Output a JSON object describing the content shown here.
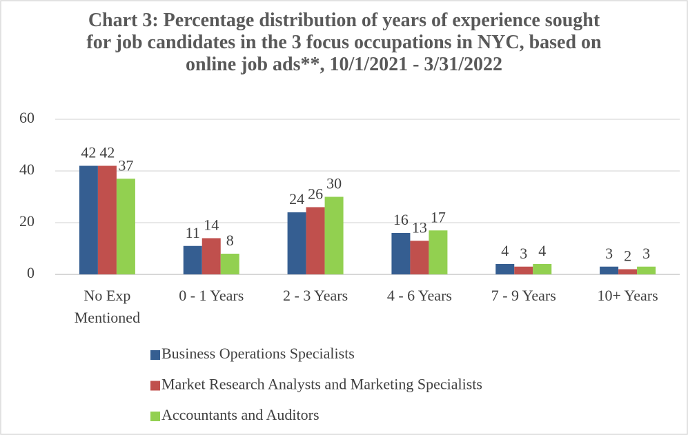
{
  "chart_data": {
    "type": "bar",
    "title": "Chart 3: Percentage distribution of years of experience sought for job candidates in the 3 focus occupations in NYC, based on online job ads**, 10/1/2021 - 3/31/2022",
    "categories": [
      "No Exp Mentioned",
      "0 - 1 Years",
      "2 - 3 Years",
      "4 - 6 Years",
      "7 - 9 Years",
      "10+ Years"
    ],
    "series": [
      {
        "name": "Business Operations Specialists",
        "color": "#355e91",
        "values": [
          42,
          11,
          24,
          16,
          4,
          3
        ]
      },
      {
        "name": "Market Research Analysts and Marketing Specialists",
        "color": "#c0504d",
        "values": [
          42,
          14,
          26,
          13,
          3,
          2
        ]
      },
      {
        "name": "Accountants and Auditors",
        "color": "#92d050",
        "values": [
          37,
          8,
          30,
          17,
          4,
          3
        ]
      }
    ],
    "ylim": [
      0,
      60
    ],
    "yticks": [
      0,
      20,
      40,
      60
    ],
    "grid": true,
    "legend": "bottom"
  }
}
